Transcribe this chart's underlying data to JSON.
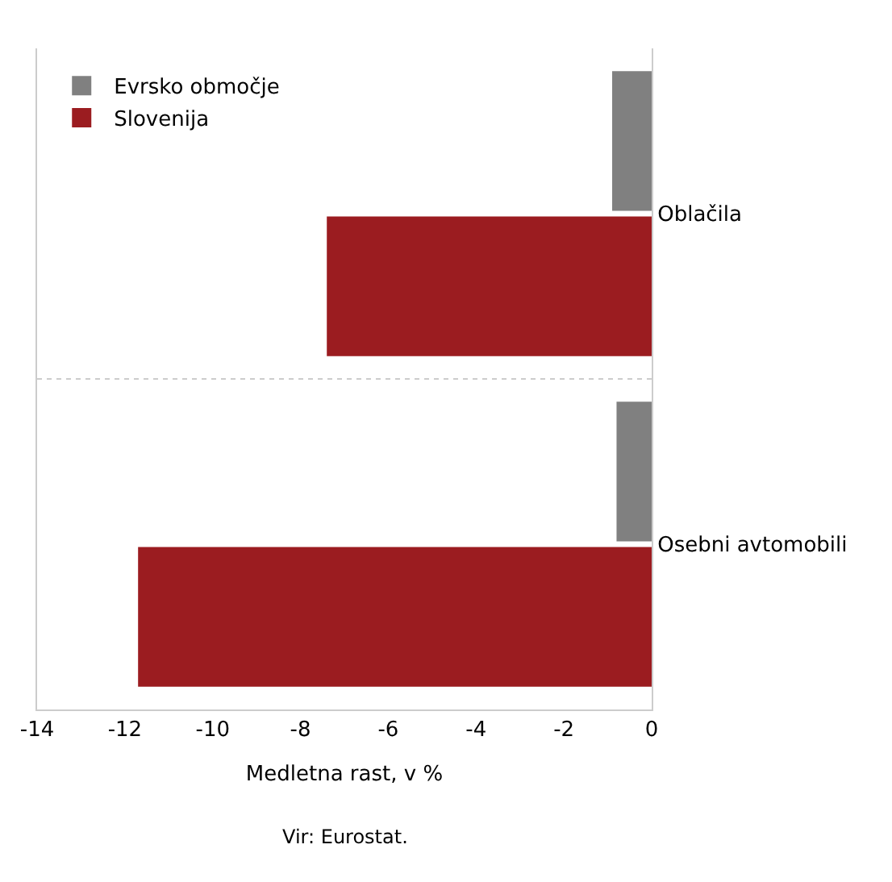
{
  "chart_data": {
    "type": "bar",
    "orientation": "horizontal",
    "categories": [
      "Oblačila",
      "Osebni avtomobili"
    ],
    "series": [
      {
        "name": "Evrsko območje",
        "color": "#808080",
        "values": [
          -0.9,
          -0.8
        ]
      },
      {
        "name": "Slovenija",
        "color": "#9b1c20",
        "values": [
          -7.4,
          -11.7
        ]
      }
    ],
    "xlim": [
      -14,
      0
    ],
    "xticks": [
      -14,
      -12,
      -10,
      -8,
      -6,
      -4,
      -2,
      0
    ],
    "xlabel": "Medletna rast, v %",
    "annotations": [
      "Vir: Eurostat."
    ],
    "grid": "y",
    "legend": "top left"
  }
}
